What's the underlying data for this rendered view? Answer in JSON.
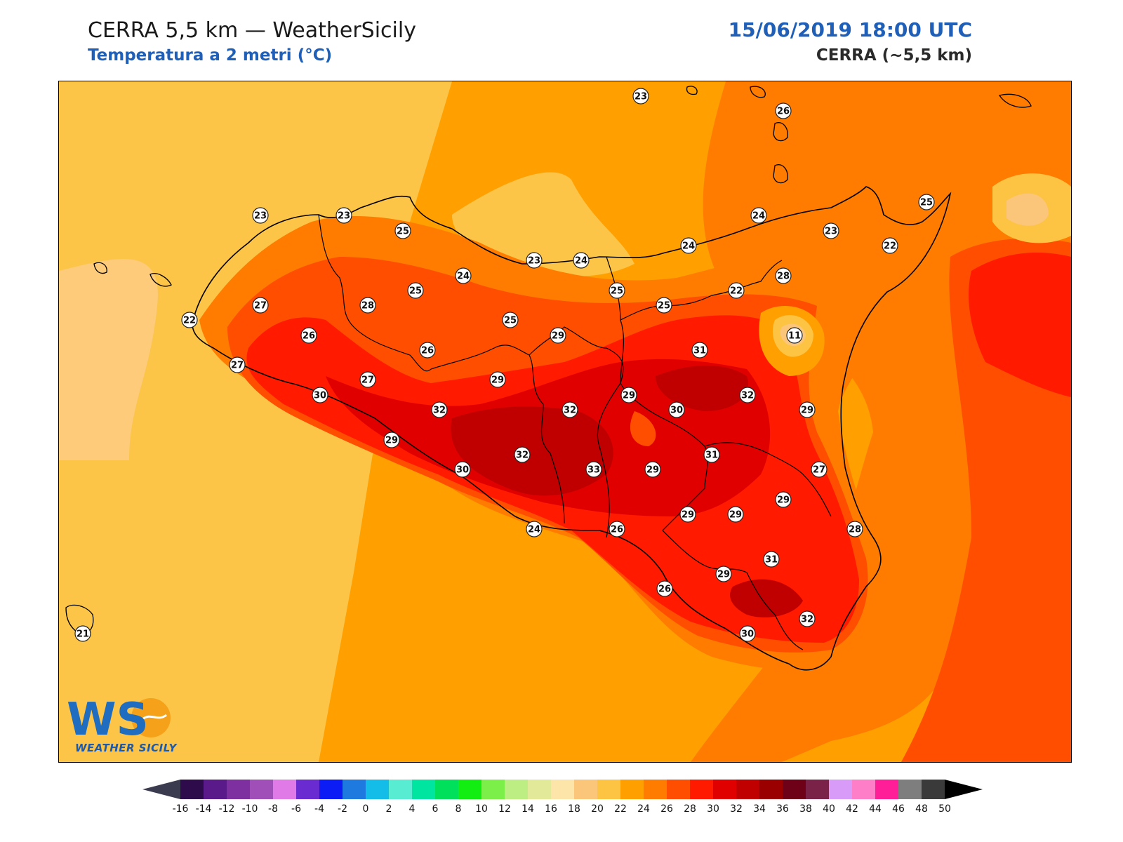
{
  "header": {
    "title_left": "CERRA 5,5 km — WeatherSicily",
    "subtitle_left": "Temperatura a 2 metri (°C)",
    "title_right": "15/06/2019 18:00 UTC",
    "subtitle_right": "CERRA (~5,5 km)"
  },
  "logo": {
    "mark": "WS",
    "text": "WEATHER SICILY"
  },
  "colors": {
    "sea_light": "#fcc548",
    "sea_mid": "#ff9f00",
    "warm_orange": "#ff7c00",
    "hot_red": "#ff1a00",
    "very_hot": "#d60000",
    "extreme": "#b80000"
  },
  "stations": [
    {
      "value": "23"
    },
    {
      "value": "26"
    },
    {
      "value": "25"
    },
    {
      "value": "23"
    },
    {
      "value": "23"
    },
    {
      "value": "25"
    },
    {
      "value": "24"
    },
    {
      "value": "24"
    },
    {
      "value": "25"
    },
    {
      "value": "23"
    },
    {
      "value": "24"
    },
    {
      "value": "23"
    },
    {
      "value": "24"
    },
    {
      "value": "22"
    },
    {
      "value": "22"
    },
    {
      "value": "28"
    },
    {
      "value": "27"
    },
    {
      "value": "28"
    },
    {
      "value": "25"
    },
    {
      "value": "25"
    },
    {
      "value": "25"
    },
    {
      "value": "22"
    },
    {
      "value": "26"
    },
    {
      "value": "26"
    },
    {
      "value": "29"
    },
    {
      "value": "31"
    },
    {
      "value": "11"
    },
    {
      "value": "27"
    },
    {
      "value": "27"
    },
    {
      "value": "29"
    },
    {
      "value": "30"
    },
    {
      "value": "32"
    },
    {
      "value": "32"
    },
    {
      "value": "29"
    },
    {
      "value": "30"
    },
    {
      "value": "32"
    },
    {
      "value": "29"
    },
    {
      "value": "29"
    },
    {
      "value": "32"
    },
    {
      "value": "33"
    },
    {
      "value": "29"
    },
    {
      "value": "31"
    },
    {
      "value": "27"
    },
    {
      "value": "30"
    },
    {
      "value": "29"
    },
    {
      "value": "29"
    },
    {
      "value": "29"
    },
    {
      "value": "28"
    },
    {
      "value": "24"
    },
    {
      "value": "26"
    },
    {
      "value": "31"
    },
    {
      "value": "29"
    },
    {
      "value": "26"
    },
    {
      "value": "32"
    },
    {
      "value": "30"
    },
    {
      "value": "21"
    }
  ],
  "colorbar": {
    "ticks": [
      "-16",
      "-14",
      "-12",
      "-10",
      "-8",
      "-6",
      "-4",
      "-2",
      "0",
      "2",
      "4",
      "6",
      "8",
      "10",
      "12",
      "14",
      "16",
      "18",
      "20",
      "22",
      "24",
      "26",
      "28",
      "30",
      "32",
      "34",
      "36",
      "38",
      "40",
      "42",
      "44",
      "46",
      "48",
      "50"
    ],
    "colors": [
      "#2e0b4a",
      "#5a1a8a",
      "#7e2fa0",
      "#a04fb8",
      "#e07ae6",
      "#6a2bd0",
      "#0b1cf5",
      "#1f7ae0",
      "#13bde8",
      "#58ecd2",
      "#00e6a0",
      "#00e05a",
      "#12ee12",
      "#7cf048",
      "#bdee84",
      "#e2ea9a",
      "#fde4a8",
      "#fcc67a",
      "#fdc342",
      "#ff9f00",
      "#ff7c00",
      "#ff4e00",
      "#ff1a00",
      "#e00000",
      "#c00000",
      "#9a0000",
      "#6e0018",
      "#7a2248",
      "#d89cf8",
      "#ff7ec8",
      "#ff1e98",
      "#7e7e7e",
      "#3a3a3a"
    ]
  }
}
